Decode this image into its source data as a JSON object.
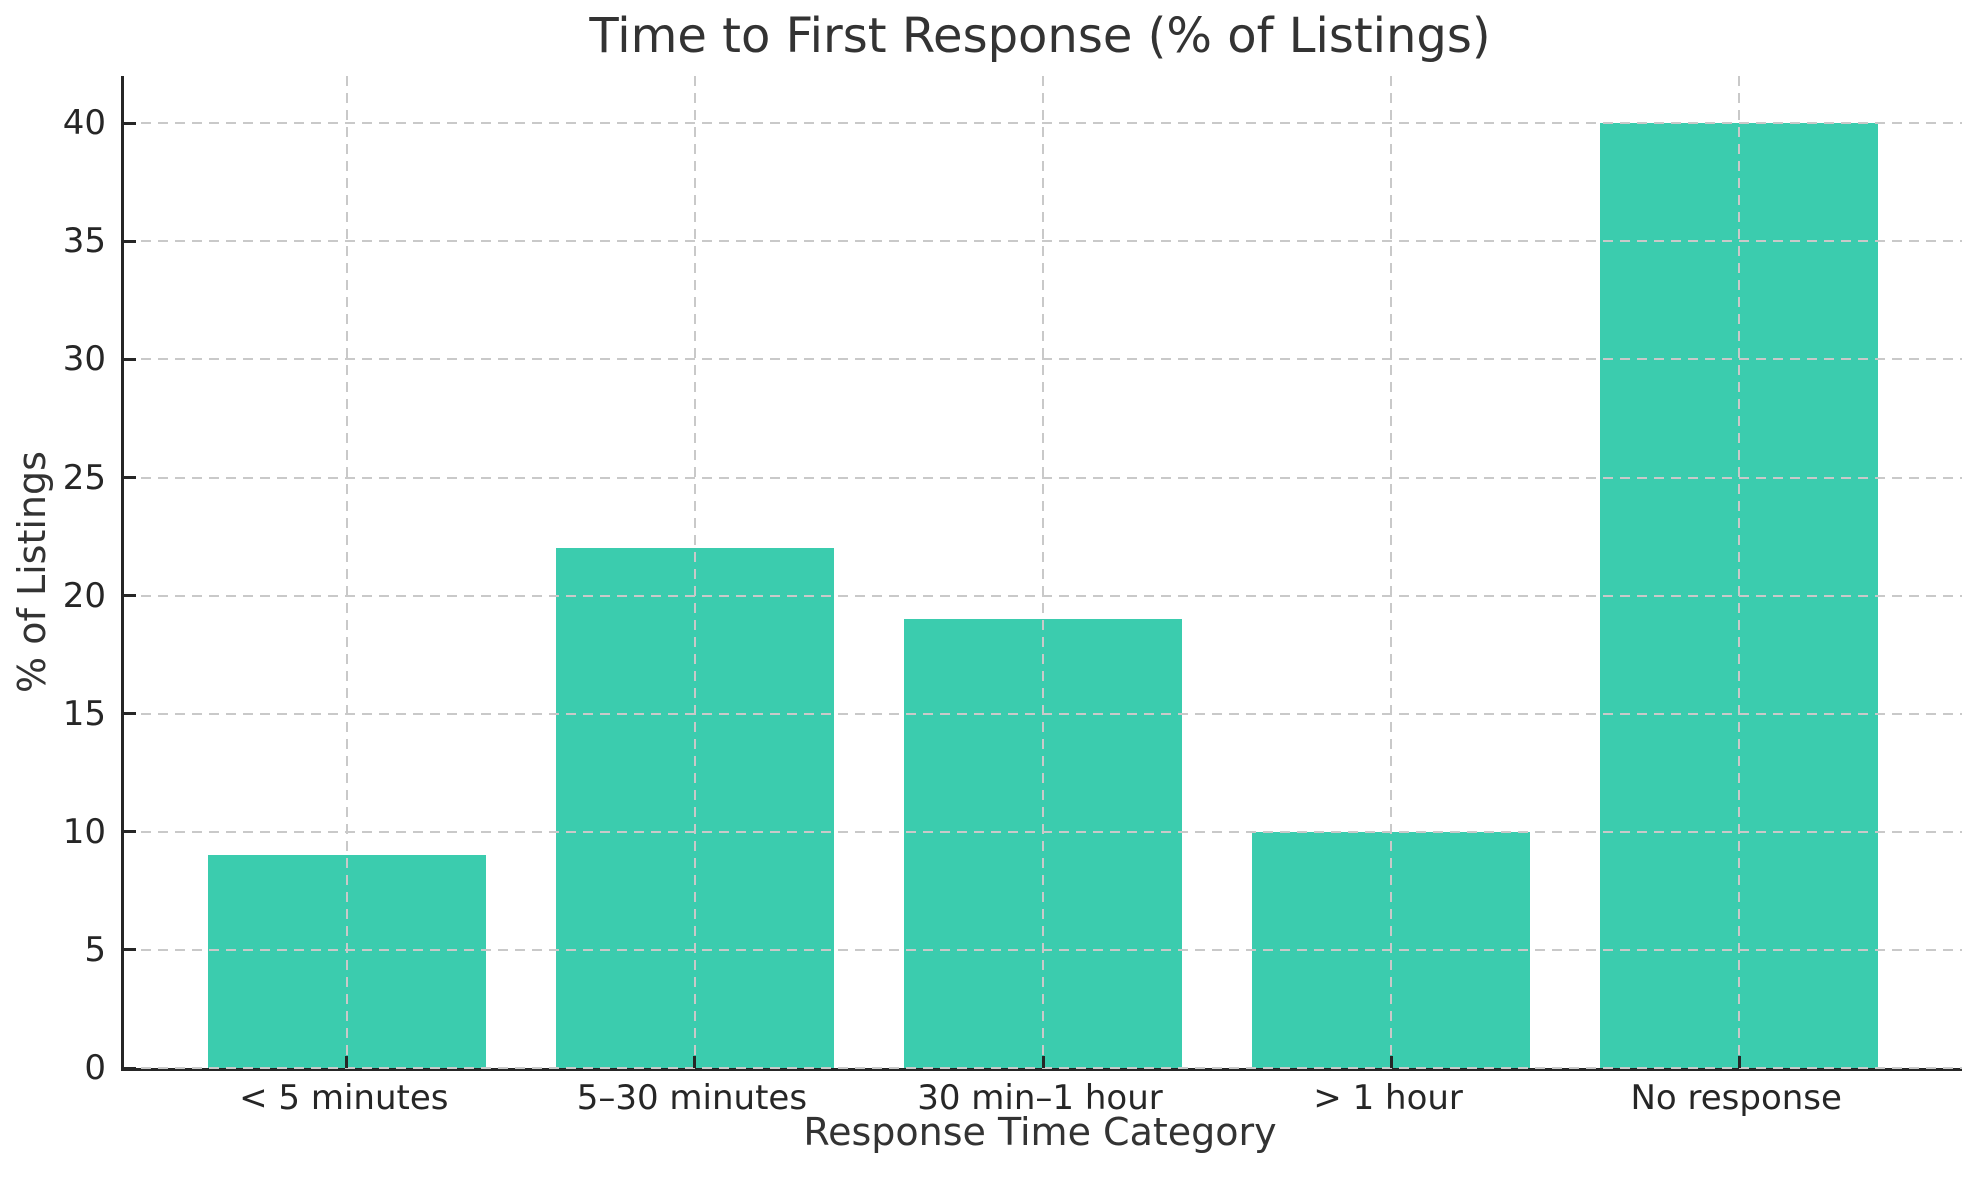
{
  "chart_data": {
    "type": "bar",
    "title": "Time to First Response (% of Listings)",
    "xlabel": "Response Time Category",
    "ylabel": "% of Listings",
    "categories": [
      "< 5 minutes",
      "5–30 minutes",
      "30 min–1 hour",
      "> 1 hour",
      "No response"
    ],
    "values": [
      9,
      22,
      19,
      10,
      40
    ],
    "yticks": [
      0,
      5,
      10,
      15,
      20,
      25,
      30,
      35,
      40
    ],
    "ylim": [
      0,
      42
    ],
    "xlim": [
      -0.64,
      4.64
    ],
    "bar_width_units": 0.8,
    "bar_color": "#3bccae",
    "axis_color": "#262626",
    "text_color": "#333333",
    "grid": {
      "show": true,
      "style": "dashed",
      "color": "#c9c9c9",
      "axes": "both",
      "drawn_above_bars": true
    },
    "legend": "none"
  }
}
